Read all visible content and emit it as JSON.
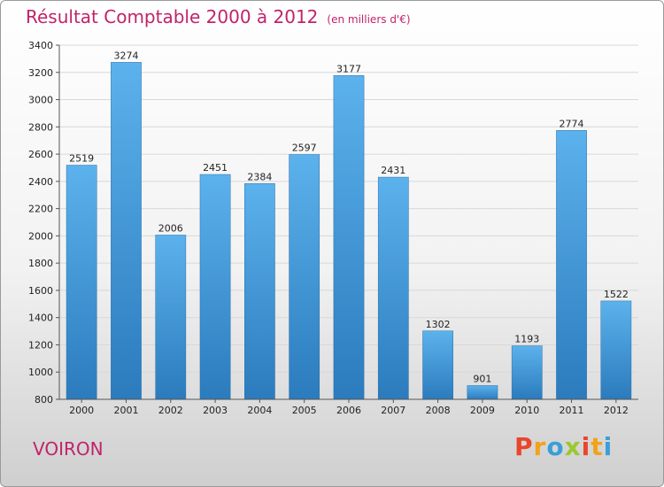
{
  "header": {
    "title": "Résultat Comptable 2000 à 2012",
    "subtitle": "(en milliers d'€)"
  },
  "footer": {
    "city": "VOIRON",
    "logo": {
      "letters": [
        "P",
        "r",
        "o",
        "x",
        "i",
        "t",
        "i"
      ],
      "colors": [
        "#e8462b",
        "#f2a21b",
        "#3a9fd8",
        "#9bc830",
        "#e8462b",
        "#f2a21b",
        "#3a9fd8"
      ]
    }
  },
  "chart_data": {
    "type": "bar",
    "categories": [
      "2000",
      "2001",
      "2002",
      "2003",
      "2004",
      "2005",
      "2006",
      "2007",
      "2008",
      "2009",
      "2010",
      "2011",
      "2012"
    ],
    "values": [
      2519,
      3274,
      2006,
      2451,
      2384,
      2597,
      3177,
      2431,
      1302,
      901,
      1193,
      2774,
      1522
    ],
    "title": "Résultat Comptable 2000 à 2012",
    "ylim": [
      800,
      3400
    ],
    "yticks": [
      800,
      1000,
      1200,
      1400,
      1600,
      1800,
      2000,
      2200,
      2400,
      2600,
      2800,
      3000,
      3200,
      3400
    ],
    "grid": true,
    "bar_color": "#4a9fe0"
  }
}
